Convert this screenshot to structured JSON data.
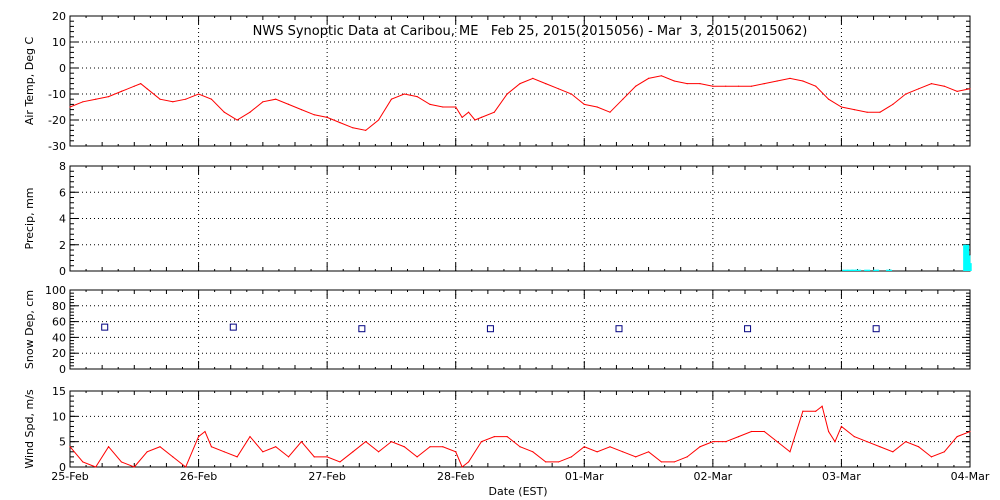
{
  "chart_data": [
    {
      "type": "line",
      "title": "NWS Synoptic Data at Caribou, ME   Feb 25, 2015(2015056) - Mar  3, 2015(2015062)",
      "ylabel": "Air Temp, Deg C",
      "ylim": [
        -30,
        20
      ],
      "yticks": [
        -30,
        -20,
        -10,
        0,
        10,
        20
      ],
      "grid": true,
      "series": [
        {
          "color": "#ff0000",
          "x": [
            0,
            0.1,
            0.2,
            0.3,
            0.4,
            0.5,
            0.55,
            0.6,
            0.7,
            0.8,
            0.9,
            1.0,
            1.1,
            1.2,
            1.3,
            1.4,
            1.5,
            1.6,
            1.7,
            1.8,
            1.9,
            2.0,
            2.1,
            2.2,
            2.3,
            2.4,
            2.5,
            2.6,
            2.7,
            2.8,
            2.9,
            3.0,
            3.05,
            3.1,
            3.15,
            3.2,
            3.3,
            3.4,
            3.5,
            3.6,
            3.7,
            3.8,
            3.9,
            4.0,
            4.1,
            4.2,
            4.3,
            4.4,
            4.5,
            4.6,
            4.7,
            4.8,
            4.9,
            5.0,
            5.1,
            5.2,
            5.3,
            5.4,
            5.5,
            5.6,
            5.7,
            5.8,
            5.9,
            6.0,
            6.1,
            6.2,
            6.3,
            6.4,
            6.5,
            6.6,
            6.7,
            6.8,
            6.9,
            7.0
          ],
          "y": [
            -15,
            -13,
            -12,
            -11,
            -9,
            -7,
            -6,
            -8,
            -12,
            -13,
            -12,
            -10,
            -12,
            -17,
            -20,
            -17,
            -13,
            -12,
            -14,
            -16,
            -18,
            -19,
            -21,
            -23,
            -24,
            -20,
            -12,
            -10,
            -11,
            -14,
            -15,
            -15,
            -19,
            -17,
            -20,
            -19,
            -17,
            -10,
            -6,
            -4,
            -6,
            -8,
            -10,
            -14,
            -15,
            -17,
            -12,
            -7,
            -4,
            -3,
            -5,
            -6,
            -6,
            -7,
            -7,
            -7,
            -7,
            -6,
            -5,
            -4,
            -5,
            -7,
            -12,
            -15,
            -16,
            -17,
            -17,
            -14,
            -10,
            -8,
            -6,
            -7,
            -9,
            -8
          ]
        }
      ]
    },
    {
      "type": "bar",
      "ylabel": "Precip, mm",
      "ylim": [
        0,
        8
      ],
      "yticks": [
        0,
        2,
        4,
        6,
        8
      ],
      "grid": true,
      "series": [
        {
          "color": "#00ffff",
          "x": [
            6.03,
            6.07,
            6.1,
            6.13,
            6.2,
            6.27,
            6.37,
            6.97,
            6.98,
            6.99
          ],
          "values": [
            0.1,
            0.1,
            0.1,
            0.1,
            0.1,
            0.1,
            0.1,
            2.0,
            1.2,
            0.6
          ]
        }
      ]
    },
    {
      "type": "scatter",
      "ylabel": "Snow Dep, cm",
      "ylim": [
        0,
        100
      ],
      "yticks": [
        0,
        20,
        40,
        60,
        80,
        100
      ],
      "grid": true,
      "series": [
        {
          "color": "#000080",
          "marker": "square",
          "x": [
            0.27,
            1.27,
            2.27,
            3.27,
            4.27,
            5.27,
            6.27
          ],
          "y": [
            53,
            53,
            51,
            51,
            51,
            51,
            51
          ]
        }
      ]
    },
    {
      "type": "line",
      "ylabel": "Wind Spd, m/s",
      "xlabel": "Date (EST)",
      "ylim": [
        0,
        15
      ],
      "yticks": [
        0,
        5,
        10,
        15
      ],
      "xticklabels": [
        "25-Feb",
        "26-Feb",
        "27-Feb",
        "28-Feb",
        "01-Mar",
        "02-Mar",
        "03-Mar",
        "04-Mar"
      ],
      "grid": true,
      "series": [
        {
          "color": "#ff0000",
          "x": [
            0,
            0.1,
            0.2,
            0.3,
            0.4,
            0.5,
            0.6,
            0.7,
            0.8,
            0.9,
            1.0,
            1.05,
            1.1,
            1.2,
            1.3,
            1.4,
            1.5,
            1.6,
            1.7,
            1.8,
            1.9,
            2.0,
            2.1,
            2.2,
            2.3,
            2.4,
            2.5,
            2.6,
            2.7,
            2.8,
            2.9,
            3.0,
            3.05,
            3.1,
            3.2,
            3.3,
            3.4,
            3.5,
            3.6,
            3.7,
            3.8,
            3.9,
            4.0,
            4.1,
            4.2,
            4.3,
            4.4,
            4.5,
            4.6,
            4.7,
            4.8,
            4.9,
            5.0,
            5.1,
            5.2,
            5.3,
            5.4,
            5.5,
            5.6,
            5.7,
            5.8,
            5.85,
            5.9,
            5.95,
            6.0,
            6.1,
            6.2,
            6.3,
            6.4,
            6.5,
            6.6,
            6.7,
            6.8,
            6.9,
            7.0
          ],
          "y": [
            4,
            1,
            0,
            4,
            1,
            0,
            3,
            4,
            2,
            0,
            6,
            7,
            4,
            3,
            2,
            6,
            3,
            4,
            2,
            5,
            2,
            2,
            1,
            3,
            5,
            3,
            5,
            4,
            2,
            4,
            4,
            3,
            0,
            1,
            5,
            6,
            6,
            4,
            3,
            1,
            1,
            2,
            4,
            3,
            4,
            3,
            2,
            3,
            1,
            1,
            2,
            4,
            5,
            5,
            6,
            7,
            7,
            5,
            3,
            11,
            11,
            12,
            7,
            5,
            8,
            6,
            5,
            4,
            3,
            5,
            4,
            2,
            3,
            6,
            7
          ]
        }
      ]
    }
  ]
}
